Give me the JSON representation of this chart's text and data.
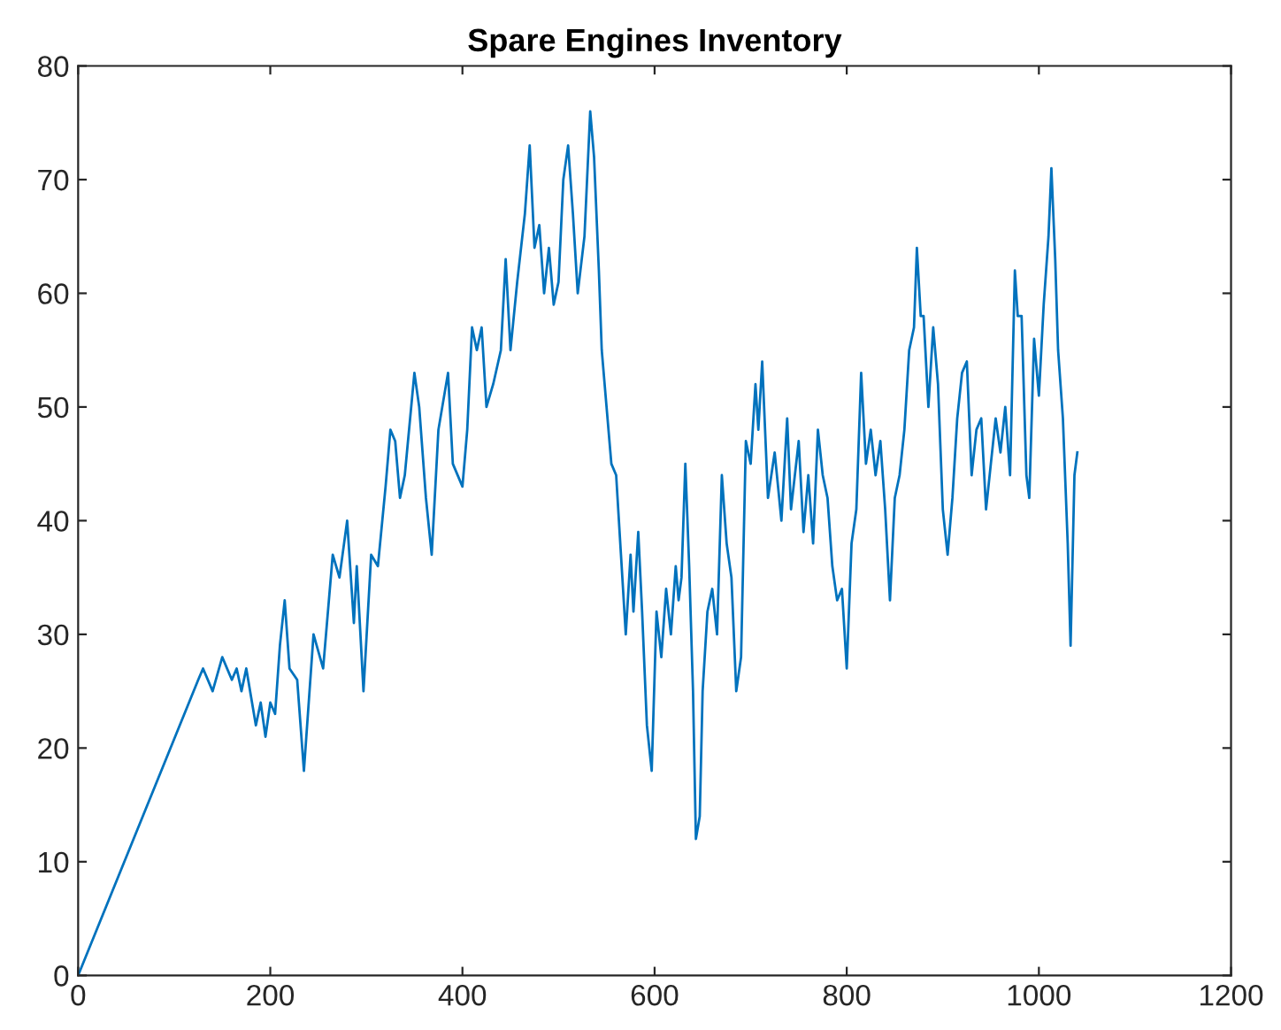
{
  "chart_data": {
    "type": "line",
    "title": "Spare Engines Inventory",
    "x": [
      0,
      125,
      130,
      140,
      150,
      160,
      165,
      170,
      175,
      185,
      190,
      195,
      200,
      205,
      210,
      215,
      220,
      228,
      235,
      245,
      255,
      265,
      272,
      280,
      287,
      290,
      297,
      305,
      312,
      320,
      325,
      330,
      335,
      340,
      350,
      355,
      362,
      368,
      375,
      385,
      390,
      400,
      405,
      410,
      415,
      420,
      425,
      432,
      440,
      445,
      450,
      457,
      465,
      470,
      475,
      480,
      485,
      490,
      495,
      500,
      505,
      510,
      515,
      520,
      527,
      533,
      537,
      542,
      545,
      550,
      555,
      560,
      565,
      570,
      575,
      578,
      583,
      587,
      592,
      597,
      602,
      607,
      612,
      617,
      622,
      625,
      628,
      632,
      636,
      640,
      643,
      647,
      650,
      655,
      660,
      665,
      670,
      675,
      680,
      685,
      690,
      695,
      700,
      705,
      708,
      712,
      718,
      725,
      732,
      738,
      742,
      750,
      755,
      760,
      765,
      770,
      775,
      780,
      785,
      790,
      795,
      800,
      805,
      810,
      815,
      820,
      825,
      830,
      835,
      840,
      845,
      850,
      855,
      860,
      865,
      870,
      873,
      877,
      880,
      885,
      890,
      895,
      900,
      905,
      910,
      915,
      920,
      925,
      930,
      935,
      940,
      945,
      950,
      955,
      960,
      965,
      970,
      975,
      978,
      982,
      987,
      990,
      995,
      1000,
      1005,
      1010,
      1013,
      1017,
      1020,
      1025,
      1030,
      1033,
      1037,
      1040
    ],
    "series": [
      {
        "color": "#0072bd",
        "values": [
          0,
          26,
          27,
          25,
          28,
          26,
          27,
          25,
          27,
          22,
          24,
          21,
          24,
          23,
          29,
          33,
          27,
          26,
          18,
          30,
          27,
          37,
          35,
          40,
          31,
          36,
          25,
          37,
          36,
          43,
          48,
          47,
          42,
          44,
          53,
          50,
          42,
          37,
          48,
          53,
          45,
          43,
          48,
          57,
          55,
          57,
          50,
          52,
          55,
          63,
          55,
          61,
          67,
          73,
          64,
          66,
          60,
          64,
          59,
          61,
          70,
          73,
          67,
          60,
          65,
          76,
          72,
          62,
          55,
          50,
          45,
          44,
          37,
          30,
          37,
          32,
          39,
          32,
          22,
          18,
          32,
          28,
          34,
          30,
          36,
          33,
          35,
          45,
          36,
          25,
          12,
          14,
          25,
          32,
          34,
          30,
          44,
          38,
          35,
          25,
          28,
          47,
          45,
          52,
          48,
          54,
          42,
          46,
          40,
          49,
          41,
          47,
          39,
          44,
          38,
          48,
          44,
          42,
          36,
          33,
          34,
          27,
          38,
          41,
          53,
          45,
          48,
          44,
          47,
          41,
          33,
          42,
          44,
          48,
          55,
          57,
          64,
          58,
          58,
          50,
          57,
          52,
          41,
          37,
          42,
          49,
          53,
          54,
          44,
          48,
          49,
          41,
          45,
          49,
          46,
          50,
          44,
          62,
          58,
          58,
          44,
          42,
          56,
          51,
          59,
          65,
          71,
          63,
          55,
          49,
          38,
          29,
          44,
          46
        ]
      }
    ],
    "xlim": [
      0,
      1200
    ],
    "xticks": [
      0,
      200,
      400,
      600,
      800,
      1000,
      1200
    ],
    "ylim": [
      0,
      80
    ],
    "yticks": [
      0,
      10,
      20,
      30,
      40,
      50,
      60,
      70,
      80
    ],
    "grid": false,
    "legend": false,
    "marker": "none",
    "line_style": "solid"
  }
}
